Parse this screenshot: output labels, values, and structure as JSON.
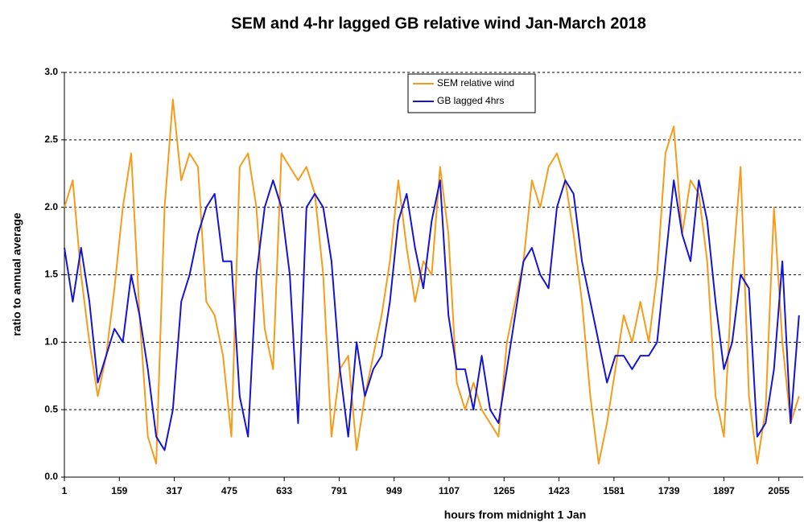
{
  "chart_data": {
    "type": "line",
    "title": "SEM and 4-hr lagged GB relative wind Jan-March 2018",
    "xlabel": "hours from midnight 1 Jan",
    "ylabel": "ratio to annual average",
    "x": [
      1,
      25,
      49,
      73,
      97,
      121,
      145,
      169,
      193,
      217,
      241,
      265,
      289,
      313,
      337,
      361,
      385,
      409,
      433,
      457,
      481,
      505,
      529,
      553,
      577,
      601,
      625,
      649,
      673,
      697,
      721,
      745,
      769,
      793,
      817,
      841,
      865,
      889,
      913,
      937,
      961,
      985,
      1009,
      1033,
      1057,
      1081,
      1105,
      1129,
      1153,
      1177,
      1201,
      1225,
      1249,
      1273,
      1297,
      1321,
      1345,
      1369,
      1393,
      1417,
      1441,
      1465,
      1489,
      1513,
      1537,
      1561,
      1585,
      1609,
      1633,
      1657,
      1681,
      1705,
      1729,
      1753,
      1777,
      1801,
      1825,
      1849,
      1873,
      1897,
      1921,
      1945,
      1969,
      1993,
      2017,
      2041,
      2065,
      2089,
      2113
    ],
    "series": [
      {
        "name": "SEM relative wind",
        "color": "#f59c1a",
        "values": [
          2.0,
          2.2,
          1.5,
          1.0,
          0.6,
          0.9,
          1.4,
          2.0,
          2.4,
          1.2,
          0.3,
          0.1,
          2.0,
          2.8,
          2.2,
          2.4,
          2.3,
          1.3,
          1.2,
          0.9,
          0.3,
          2.3,
          2.4,
          2.0,
          1.1,
          0.8,
          2.4,
          2.3,
          2.2,
          2.3,
          2.1,
          1.5,
          0.3,
          0.8,
          0.9,
          0.2,
          0.6,
          0.9,
          1.2,
          1.6,
          2.2,
          1.7,
          1.3,
          1.6,
          1.5,
          2.3,
          1.8,
          0.7,
          0.5,
          0.7,
          0.5,
          0.4,
          0.3,
          1.0,
          1.3,
          1.6,
          2.2,
          2.0,
          2.3,
          2.4,
          2.2,
          1.8,
          1.3,
          0.6,
          0.1,
          0.4,
          0.8,
          1.2,
          1.0,
          1.3,
          1.0,
          1.5,
          2.4,
          2.6,
          1.8,
          2.2,
          2.1,
          1.6,
          0.6,
          0.3,
          1.5,
          2.3,
          0.6,
          0.1,
          0.5,
          2.0,
          1.0,
          0.4,
          0.6
        ]
      },
      {
        "name": "GB lagged 4hrs",
        "color": "#1414d2",
        "values": [
          1.7,
          1.3,
          1.7,
          1.3,
          0.7,
          0.9,
          1.1,
          1.0,
          1.5,
          1.2,
          0.8,
          0.3,
          0.2,
          0.5,
          1.3,
          1.5,
          1.8,
          2.0,
          2.1,
          1.6,
          1.6,
          0.6,
          0.3,
          1.5,
          2.0,
          2.2,
          2.0,
          1.5,
          0.4,
          2.0,
          2.1,
          2.0,
          1.6,
          0.8,
          0.3,
          1.0,
          0.6,
          0.8,
          0.9,
          1.3,
          1.9,
          2.1,
          1.7,
          1.4,
          1.9,
          2.2,
          1.2,
          0.8,
          0.8,
          0.5,
          0.9,
          0.5,
          0.4,
          0.8,
          1.2,
          1.6,
          1.7,
          1.5,
          1.4,
          2.0,
          2.2,
          2.1,
          1.6,
          1.3,
          1.0,
          0.7,
          0.9,
          0.9,
          0.8,
          0.9,
          0.9,
          1.0,
          1.6,
          2.2,
          1.8,
          1.6,
          2.2,
          1.9,
          1.3,
          0.8,
          1.0,
          1.5,
          1.4,
          0.3,
          0.4,
          0.8,
          1.6,
          0.4,
          1.2
        ]
      }
    ],
    "xlim": [
      1,
      2125
    ],
    "xticks": [
      1,
      159,
      317,
      475,
      633,
      791,
      949,
      1107,
      1265,
      1423,
      1581,
      1739,
      1897,
      2055
    ],
    "ylim": [
      0,
      3
    ],
    "yticks": [
      {
        "value": 0,
        "label": "0.0"
      },
      0.5,
      {
        "value": 1,
        "label": "1.0"
      },
      1.5,
      {
        "value": 2,
        "label": "2.0"
      },
      2.5,
      {
        "value": 3,
        "label": "3.0"
      }
    ],
    "grid": true,
    "legend": "top"
  }
}
